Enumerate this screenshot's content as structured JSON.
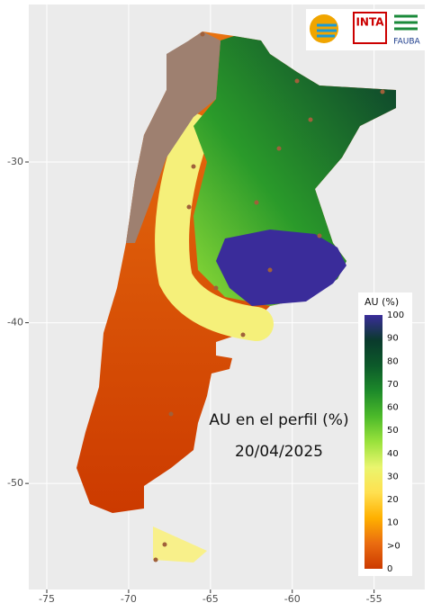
{
  "map": {
    "title": "AU en el perfil (%)",
    "date": "20/04/2025",
    "xlim": [
      -76.1,
      -51.9
    ],
    "ylim": [
      -56.6,
      -20.2
    ],
    "xticks": [
      -75,
      -70,
      -65,
      -60,
      -55
    ],
    "yticks": [
      -50,
      -40,
      -30
    ]
  },
  "legend": {
    "title": "AU (%)",
    "labels": [
      "100",
      "90",
      "80",
      "70",
      "60",
      "50",
      "40",
      "30",
      "20",
      "10",
      ">0",
      "0"
    ],
    "colors": [
      "#3a2c9a",
      "#0a3a2c",
      "#0c5a2a",
      "#1d8a2a",
      "#4cba2a",
      "#9ae23c",
      "#eaf56e",
      "#ffe050",
      "#ffb000",
      "#ea6c10",
      "#cc3a00"
    ]
  },
  "logos": {
    "inta": "INTA",
    "fauba": "FAUBA"
  }
}
